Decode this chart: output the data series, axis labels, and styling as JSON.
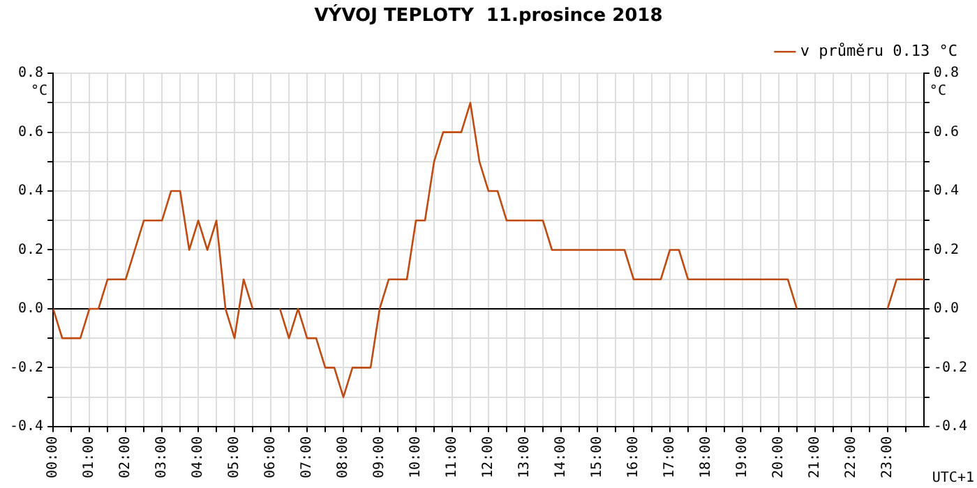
{
  "chart_data": {
    "type": "line",
    "title": "VÝVOJ TEPLOTY  11.prosince 2018",
    "ylabel": "°C",
    "y2label": "°C",
    "annotations": [
      "UTC+1"
    ],
    "series": [
      {
        "name": "v průměru 0.13 °C",
        "color": "#c04a10",
        "x": [
          0,
          0.25,
          0.75,
          1,
          1.25,
          1.5,
          2,
          2.5,
          3,
          3.25,
          3.5,
          3.75,
          4,
          4.25,
          4.5,
          4.75,
          5,
          5.25,
          5.5,
          5.9,
          6.25,
          6.5,
          6.75,
          7,
          7.25,
          7.5,
          7.75,
          8,
          8.25,
          8.75,
          9,
          9.25,
          9.75,
          10,
          10.25,
          10.5,
          10.75,
          11.25,
          11.5,
          11.75,
          12,
          12.25,
          12.5,
          13.5,
          13.75,
          15.75,
          16,
          16.75,
          17,
          17.25,
          17.5,
          20.25,
          20.5,
          21.75,
          23,
          23.25,
          24
        ],
        "values": [
          0,
          -0.1,
          -0.1,
          0,
          0,
          0.1,
          0.1,
          0.3,
          0.3,
          0.4,
          0.4,
          0.2,
          0.3,
          0.2,
          0.3,
          0,
          -0.1,
          0.1,
          0,
          null,
          0,
          -0.1,
          0,
          -0.1,
          -0.1,
          -0.2,
          -0.2,
          -0.3,
          -0.2,
          -0.2,
          0,
          0.1,
          0.1,
          0.3,
          0.3,
          0.5,
          0.6,
          0.6,
          0.7,
          0.5,
          0.4,
          0.4,
          0.3,
          0.3,
          0.2,
          0.2,
          0.1,
          0.1,
          0.2,
          0.2,
          0.1,
          0.1,
          0,
          null,
          0,
          0.1,
          0.1
        ]
      }
    ],
    "xlim": [
      0,
      24
    ],
    "xticks": [
      {
        "value": 0,
        "label": "00:00"
      },
      {
        "value": 0.5,
        "label": null
      },
      {
        "value": 1,
        "label": "01:00"
      },
      {
        "value": 1.5,
        "label": null
      },
      {
        "value": 2,
        "label": "02:00"
      },
      {
        "value": 2.5,
        "label": null
      },
      {
        "value": 3,
        "label": "03:00"
      },
      {
        "value": 3.5,
        "label": null
      },
      {
        "value": 4,
        "label": "04:00"
      },
      {
        "value": 4.5,
        "label": null
      },
      {
        "value": 5,
        "label": "05:00"
      },
      {
        "value": 5.5,
        "label": null
      },
      {
        "value": 6,
        "label": "06:00"
      },
      {
        "value": 6.5,
        "label": null
      },
      {
        "value": 7,
        "label": "07:00"
      },
      {
        "value": 7.5,
        "label": null
      },
      {
        "value": 8,
        "label": "08:00"
      },
      {
        "value": 8.5,
        "label": null
      },
      {
        "value": 9,
        "label": "09:00"
      },
      {
        "value": 9.5,
        "label": null
      },
      {
        "value": 10,
        "label": "10:00"
      },
      {
        "value": 10.5,
        "label": null
      },
      {
        "value": 11,
        "label": "11:00"
      },
      {
        "value": 11.5,
        "label": null
      },
      {
        "value": 12,
        "label": "12:00"
      },
      {
        "value": 12.5,
        "label": null
      },
      {
        "value": 13,
        "label": "13:00"
      },
      {
        "value": 13.5,
        "label": null
      },
      {
        "value": 14,
        "label": "14:00"
      },
      {
        "value": 14.5,
        "label": null
      },
      {
        "value": 15,
        "label": "15:00"
      },
      {
        "value": 15.5,
        "label": null
      },
      {
        "value": 16,
        "label": "16:00"
      },
      {
        "value": 16.5,
        "label": null
      },
      {
        "value": 17,
        "label": "17:00"
      },
      {
        "value": 17.5,
        "label": null
      },
      {
        "value": 18,
        "label": "18:00"
      },
      {
        "value": 18.5,
        "label": null
      },
      {
        "value": 19,
        "label": "19:00"
      },
      {
        "value": 19.5,
        "label": null
      },
      {
        "value": 20,
        "label": "20:00"
      },
      {
        "value": 20.5,
        "label": null
      },
      {
        "value": 21,
        "label": "21:00"
      },
      {
        "value": 21.5,
        "label": null
      },
      {
        "value": 22,
        "label": "22:00"
      },
      {
        "value": 22.5,
        "label": null
      },
      {
        "value": 23,
        "label": "23:00"
      },
      {
        "value": 23.5,
        "label": null
      }
    ],
    "ylim": [
      -0.4,
      0.8
    ],
    "yticks": [
      {
        "value": -0.4,
        "label": "-0.4"
      },
      {
        "value": -0.3,
        "label": null
      },
      {
        "value": -0.2,
        "label": "-0.2"
      },
      {
        "value": -0.1,
        "label": null
      },
      {
        "value": 0,
        "label": "0.0"
      },
      {
        "value": 0.1,
        "label": null
      },
      {
        "value": 0.2,
        "label": "0.2"
      },
      {
        "value": 0.3,
        "label": null
      },
      {
        "value": 0.4,
        "label": "0.4"
      },
      {
        "value": 0.5,
        "label": null
      },
      {
        "value": 0.6,
        "label": "0.6"
      },
      {
        "value": 0.7,
        "label": null
      },
      {
        "value": 0.8,
        "label": "0.8"
      }
    ],
    "y2lim": [
      -0.4,
      0.8
    ],
    "y2ticks": [
      {
        "value": -0.4,
        "label": "-0.4"
      },
      {
        "value": -0.3,
        "label": null
      },
      {
        "value": -0.2,
        "label": "-0.2"
      },
      {
        "value": -0.1,
        "label": null
      },
      {
        "value": 0,
        "label": "0.0"
      },
      {
        "value": 0.1,
        "label": null
      },
      {
        "value": 0.2,
        "label": "0.2"
      },
      {
        "value": 0.3,
        "label": null
      },
      {
        "value": 0.4,
        "label": "0.4"
      },
      {
        "value": 0.5,
        "label": null
      },
      {
        "value": 0.6,
        "label": "0.6"
      },
      {
        "value": 0.7,
        "label": null
      },
      {
        "value": 0.8,
        "label": "0.8"
      }
    ],
    "ref_lines": [
      {
        "axis": "y",
        "value": 0,
        "color": "#000000"
      }
    ],
    "grid": true,
    "legend": "top right",
    "marker": "none",
    "line_style": "solid"
  }
}
